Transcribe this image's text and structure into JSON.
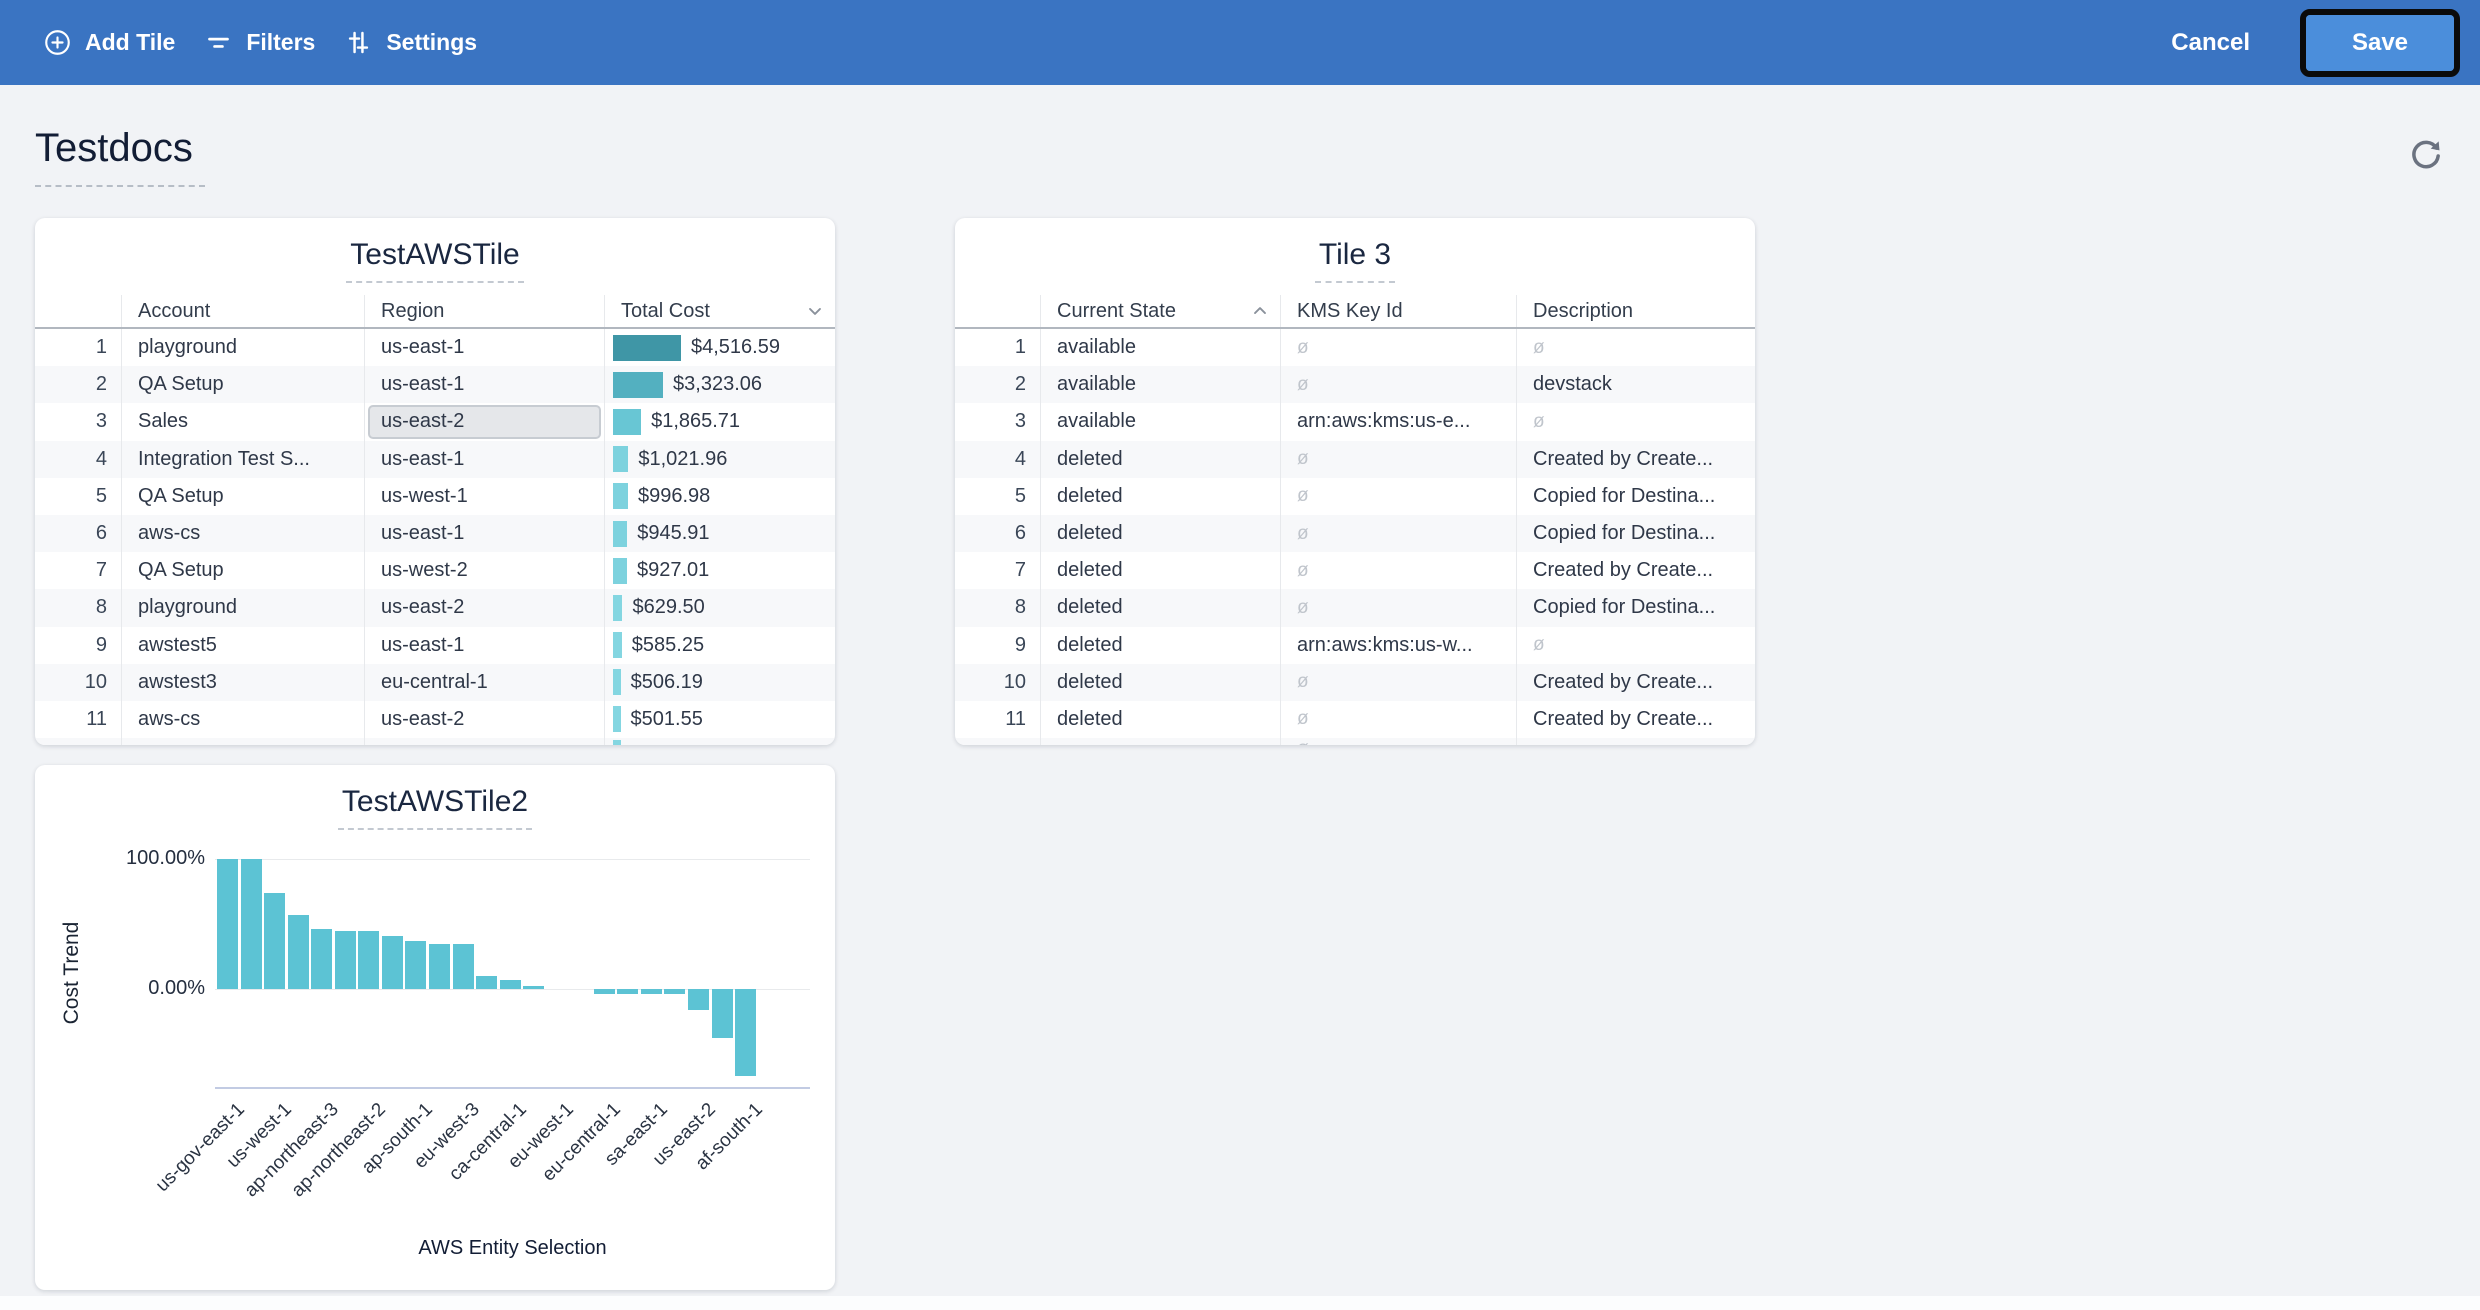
{
  "toolbar": {
    "bg_color": "#3a74c2",
    "items": [
      {
        "label": "Add Tile",
        "icon": "plus-circle-icon"
      },
      {
        "label": "Filters",
        "icon": "filter-icon"
      },
      {
        "label": "Settings",
        "icon": "sliders-icon"
      }
    ],
    "cancel_label": "Cancel",
    "save_label": "Save",
    "save_bg": "#4b8edb",
    "save_highlight_border": "#0b0b0b"
  },
  "page": {
    "title": "Testdocs"
  },
  "tile1": {
    "title": "TestAWSTile",
    "columns": [
      "Account",
      "Region",
      "Total Cost"
    ],
    "sort": {
      "column": "Total Cost",
      "direction": "desc"
    },
    "max_value": 4516.59,
    "rows": [
      {
        "n": "1",
        "account": "playground",
        "region": "us-east-1",
        "cost": "$4,516.59",
        "value": 4516.59,
        "bar_color": "#3f96a6"
      },
      {
        "n": "2",
        "account": "QA Setup",
        "region": "us-east-1",
        "cost": "$3,323.06",
        "value": 3323.06,
        "bar_color": "#53b0c0"
      },
      {
        "n": "3",
        "account": "Sales",
        "region": "us-east-2",
        "cost": "$1,865.71",
        "value": 1865.71,
        "bar_color": "#68c6d4",
        "selected_field": "region"
      },
      {
        "n": "4",
        "account": "Integration Test S...",
        "region": "us-east-1",
        "cost": "$1,021.96",
        "value": 1021.96,
        "bar_color": "#7dd2de"
      },
      {
        "n": "5",
        "account": "QA Setup",
        "region": "us-west-1",
        "cost": "$996.98",
        "value": 996.98,
        "bar_color": "#7dd2de"
      },
      {
        "n": "6",
        "account": "aws-cs",
        "region": "us-east-1",
        "cost": "$945.91",
        "value": 945.91,
        "bar_color": "#7dd2de"
      },
      {
        "n": "7",
        "account": "QA Setup",
        "region": "us-west-2",
        "cost": "$927.01",
        "value": 927.01,
        "bar_color": "#7dd2de"
      },
      {
        "n": "8",
        "account": "playground",
        "region": "us-east-2",
        "cost": "$629.50",
        "value": 629.5,
        "bar_color": "#84d6e1"
      },
      {
        "n": "9",
        "account": "awstest5",
        "region": "us-east-1",
        "cost": "$585.25",
        "value": 585.25,
        "bar_color": "#84d6e1"
      },
      {
        "n": "10",
        "account": "awstest3",
        "region": "eu-central-1",
        "cost": "$506.19",
        "value": 506.19,
        "bar_color": "#84d6e1"
      },
      {
        "n": "11",
        "account": "aws-cs",
        "region": "us-east-2",
        "cost": "$501.55",
        "value": 501.55,
        "bar_color": "#84d6e1"
      }
    ],
    "partial_next_row_bar": true
  },
  "tile2": {
    "title": "Tile 3",
    "columns": [
      "Current State",
      "KMS Key Id",
      "Description"
    ],
    "sort": {
      "column": "Current State",
      "direction": "asc"
    },
    "null_symbol": "ø",
    "rows": [
      {
        "n": "1",
        "state": "available",
        "kms": null,
        "description": null
      },
      {
        "n": "2",
        "state": "available",
        "kms": null,
        "description": "devstack"
      },
      {
        "n": "3",
        "state": "available",
        "kms": "arn:aws:kms:us-e...",
        "description": null
      },
      {
        "n": "4",
        "state": "deleted",
        "kms": null,
        "description": "Created by Create..."
      },
      {
        "n": "5",
        "state": "deleted",
        "kms": null,
        "description": "Copied for Destina..."
      },
      {
        "n": "6",
        "state": "deleted",
        "kms": null,
        "description": "Copied for Destina..."
      },
      {
        "n": "7",
        "state": "deleted",
        "kms": null,
        "description": "Created by Create..."
      },
      {
        "n": "8",
        "state": "deleted",
        "kms": null,
        "description": "Copied for Destina..."
      },
      {
        "n": "9",
        "state": "deleted",
        "kms": "arn:aws:kms:us-w...",
        "description": null
      },
      {
        "n": "10",
        "state": "deleted",
        "kms": null,
        "description": "Created by Create..."
      },
      {
        "n": "11",
        "state": "deleted",
        "kms": null,
        "description": "Created by Create..."
      }
    ],
    "partial_next_row_null": true
  },
  "chart_data": {
    "type": "bar",
    "title": "TestAWSTile2",
    "xlabel": "AWS Entity Selection",
    "ylabel": "Cost Trend",
    "yticks": [
      "100.00%",
      "0.00%"
    ],
    "ylim": [
      -75,
      100
    ],
    "grid": "horizontal",
    "legend": "none",
    "bar_color": "#5cc3d4",
    "values": [
      100,
      100,
      74,
      57,
      46,
      45,
      45,
      41,
      37,
      35,
      35,
      10,
      7,
      2,
      0,
      0,
      -4,
      -4,
      -4,
      -4,
      -16,
      -38,
      -67
    ],
    "x_labels": [
      "us-gov-east-1",
      "us-west-1",
      "ap-northeast-3",
      "ap-northeast-2",
      "ap-south-1",
      "eu-west-3",
      "ca-central-1",
      "eu-west-1",
      "eu-central-1",
      "sa-east-1",
      "us-east-2",
      "af-south-1"
    ],
    "label_every": 2
  }
}
